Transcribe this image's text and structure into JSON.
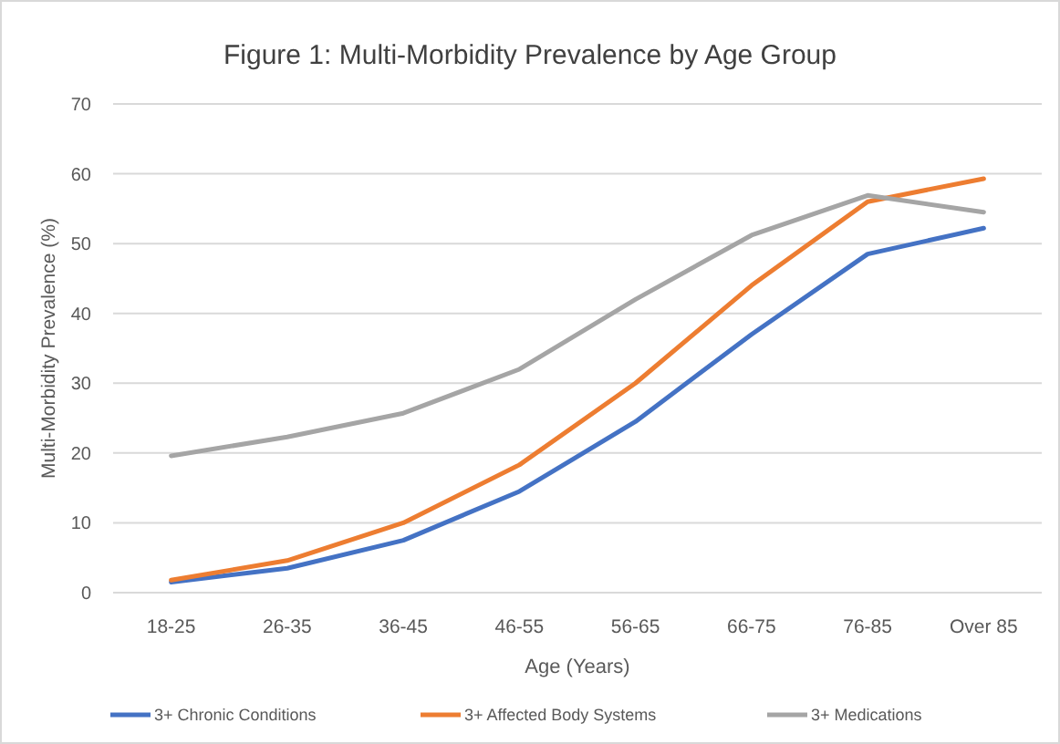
{
  "chart_data": {
    "type": "line",
    "title": "Figure 1: Multi-Morbidity Prevalence by Age Group",
    "xlabel": "Age (Years)",
    "ylabel": "Multi-Morbidity Prevalence (%)",
    "categories": [
      "18-25",
      "26-35",
      "36-45",
      "46-55",
      "56-65",
      "66-75",
      "76-85",
      "Over 85"
    ],
    "series": [
      {
        "name": "3+ Chronic Conditions",
        "color": "#4472c4",
        "values": [
          1.5,
          3.5,
          7.5,
          14.5,
          24.5,
          37,
          48.5,
          52.2
        ]
      },
      {
        "name": "3+ Affected Body Systems",
        "color": "#ed7d31",
        "values": [
          1.8,
          4.6,
          10,
          18.3,
          30,
          44,
          56,
          59.3
        ]
      },
      {
        "name": "3+ Medications",
        "color": "#a5a5a5",
        "values": [
          19.6,
          22.3,
          25.7,
          32,
          42,
          51.2,
          56.9,
          54.5
        ]
      }
    ],
    "ylim": [
      0,
      70
    ],
    "yticks": [
      0,
      10,
      20,
      30,
      40,
      50,
      60,
      70
    ],
    "grid": "y",
    "legend": "bottom",
    "marker": "none",
    "line_style": "solid"
  }
}
